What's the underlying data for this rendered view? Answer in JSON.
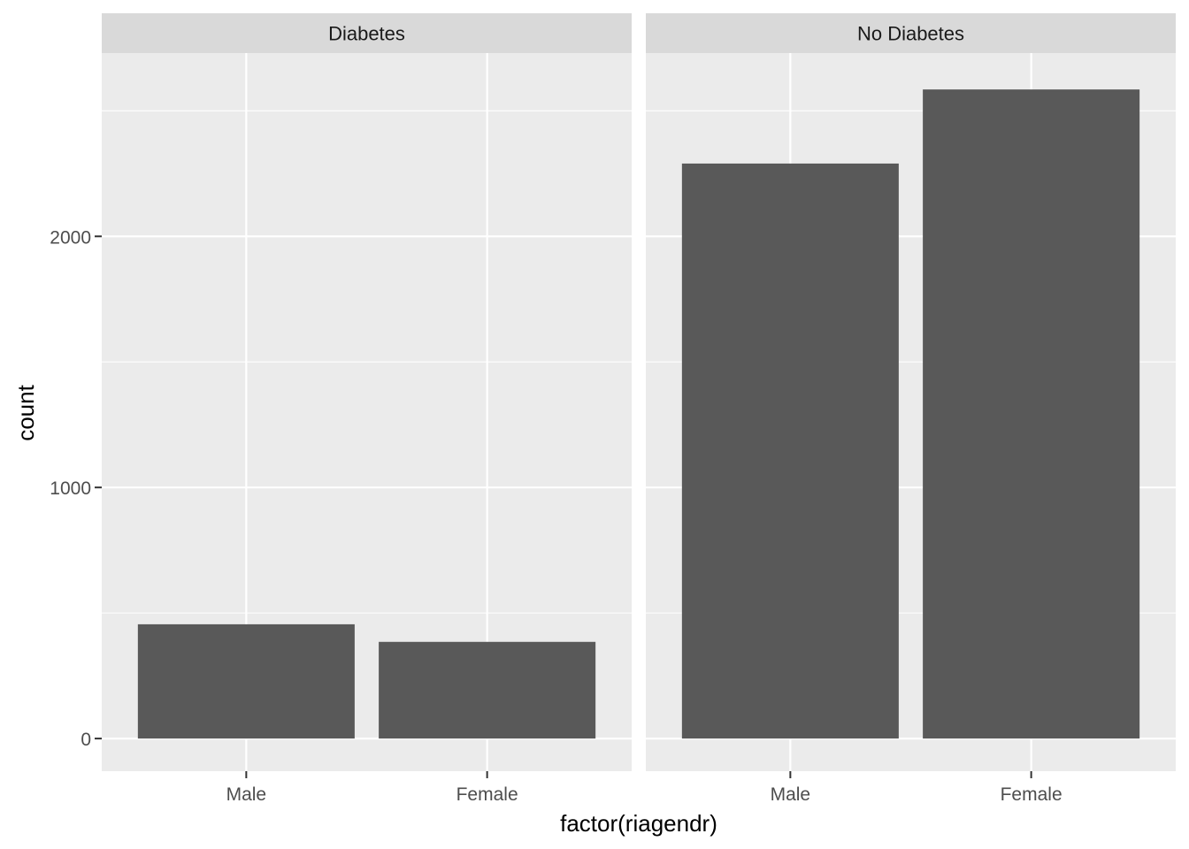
{
  "chart_data": {
    "type": "bar",
    "xlabel": "factor(riagendr)",
    "ylabel": "count",
    "categories": [
      "Male",
      "Female"
    ],
    "ylim": [
      -130,
      2730
    ],
    "y_ticks": [
      0,
      1000,
      2000
    ],
    "y_tick_labels": [
      "0",
      "1000",
      "2000"
    ],
    "grid": true,
    "facets": [
      {
        "label": "Diabetes",
        "values": [
          455,
          385
        ]
      },
      {
        "label": "No Diabetes",
        "values": [
          2290,
          2585
        ]
      }
    ],
    "colors": {
      "bar": "#595959",
      "panel": "#ebebeb",
      "strip": "#d9d9d9",
      "grid": "#ffffff"
    }
  }
}
